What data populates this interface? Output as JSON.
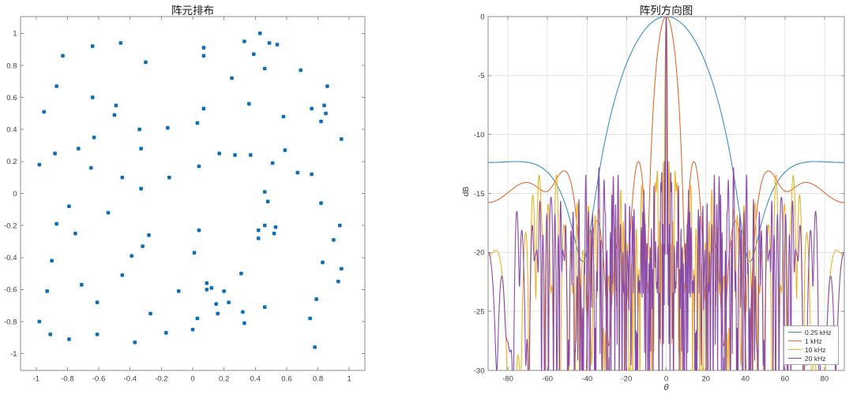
{
  "page": {
    "background": "#ffffff"
  },
  "chart_data": [
    {
      "type": "scatter",
      "title": "阵元排布",
      "xlim": [
        -1.1,
        1.1
      ],
      "ylim": [
        -1.105,
        1.105
      ],
      "xticks": [
        -1,
        -0.8,
        -0.6,
        -0.4,
        -0.2,
        0,
        0.2,
        0.4,
        0.6,
        0.8,
        1
      ],
      "yticks": [
        -1,
        -0.8,
        -0.6,
        -0.4,
        -0.2,
        0,
        0.2,
        0.4,
        0.6,
        0.8,
        1
      ],
      "grid": false,
      "marker_color": "#0E6FB8",
      "marker_size_px": 4.6,
      "points": [
        [
          -0.98,
          0.18
        ],
        [
          -0.95,
          0.51
        ],
        [
          -0.88,
          0.25
        ],
        [
          -0.83,
          0.86
        ],
        [
          -0.87,
          0.67
        ],
        [
          -0.73,
          0.28
        ],
        [
          -0.64,
          0.92
        ],
        [
          -0.64,
          0.6
        ],
        [
          -0.63,
          0.35
        ],
        [
          -0.65,
          0.16
        ],
        [
          -0.46,
          0.94
        ],
        [
          -0.49,
          0.55
        ],
        [
          -0.5,
          0.49
        ],
        [
          -0.45,
          0.1
        ],
        [
          -0.3,
          0.82
        ],
        [
          -0.34,
          0.4
        ],
        [
          -0.33,
          0.28
        ],
        [
          -0.33,
          0.03
        ],
        [
          -0.16,
          0.41
        ],
        [
          -0.15,
          0.1
        ],
        [
          0.07,
          0.91
        ],
        [
          0.07,
          0.86
        ],
        [
          0.03,
          0.44
        ],
        [
          0.07,
          0.53
        ],
        [
          0.04,
          0.17
        ],
        [
          0.25,
          0.72
        ],
        [
          0.17,
          0.25
        ],
        [
          0.27,
          0.24
        ],
        [
          0.33,
          0.95
        ],
        [
          0.39,
          0.87
        ],
        [
          0.43,
          1.0
        ],
        [
          0.46,
          0.78
        ],
        [
          0.36,
          0.56
        ],
        [
          0.37,
          0.24
        ],
        [
          0.49,
          0.94
        ],
        [
          0.54,
          0.93
        ],
        [
          0.46,
          0.01
        ],
        [
          0.51,
          0.19
        ],
        [
          0.58,
          0.48
        ],
        [
          0.59,
          0.27
        ],
        [
          0.69,
          0.77
        ],
        [
          0.67,
          0.13
        ],
        [
          0.76,
          0.53
        ],
        [
          0.76,
          0.12
        ],
        [
          0.84,
          0.55
        ],
        [
          0.85,
          0.5
        ],
        [
          0.82,
          0.45
        ],
        [
          0.86,
          0.67
        ],
        [
          0.95,
          0.34
        ],
        [
          -0.79,
          -0.08
        ],
        [
          -0.54,
          -0.12
        ],
        [
          -0.87,
          -0.19
        ],
        [
          -0.75,
          -0.25
        ],
        [
          -0.9,
          -0.42
        ],
        [
          -0.93,
          -0.61
        ],
        [
          -0.98,
          -0.8
        ],
        [
          -0.91,
          -0.88
        ],
        [
          -0.79,
          -0.91
        ],
        [
          -0.71,
          -0.57
        ],
        [
          -0.61,
          -0.68
        ],
        [
          -0.61,
          -0.88
        ],
        [
          -0.45,
          -0.51
        ],
        [
          -0.39,
          -0.39
        ],
        [
          -0.32,
          -0.33
        ],
        [
          -0.28,
          -0.26
        ],
        [
          -0.37,
          -0.93
        ],
        [
          -0.27,
          -0.75
        ],
        [
          -0.17,
          -0.87
        ],
        [
          -0.09,
          -0.61
        ],
        [
          0.04,
          -0.23
        ],
        [
          0.01,
          -0.37
        ],
        [
          0.03,
          -0.78
        ],
        [
          0.0,
          -0.85
        ],
        [
          0.09,
          -0.56
        ],
        [
          0.09,
          -0.6
        ],
        [
          0.12,
          -0.59
        ],
        [
          0.15,
          -0.69
        ],
        [
          0.16,
          -0.75
        ],
        [
          0.2,
          -0.61
        ],
        [
          0.23,
          -0.68
        ],
        [
          0.31,
          -0.5
        ],
        [
          0.32,
          -0.74
        ],
        [
          0.33,
          -0.81
        ],
        [
          0.46,
          -0.71
        ],
        [
          0.42,
          -0.23
        ],
        [
          0.42,
          -0.28
        ],
        [
          0.46,
          -0.2
        ],
        [
          0.52,
          -0.25
        ],
        [
          0.53,
          -0.21
        ],
        [
          0.48,
          -0.05
        ],
        [
          0.82,
          -0.06
        ],
        [
          0.94,
          -0.2
        ],
        [
          0.9,
          -0.29
        ],
        [
          0.83,
          -0.43
        ],
        [
          0.95,
          -0.47
        ],
        [
          0.93,
          -0.55
        ],
        [
          0.79,
          -0.66
        ],
        [
          0.75,
          -0.78
        ],
        [
          0.78,
          -0.96
        ]
      ]
    },
    {
      "type": "line",
      "title": "阵列方向图",
      "xlabel": "θ",
      "ylabel": "dB",
      "xlim": [
        -90,
        90
      ],
      "ylim": [
        -30,
        0
      ],
      "xticks": [
        -80,
        -60,
        -40,
        -20,
        0,
        20,
        40,
        60,
        80
      ],
      "yticks": [
        0,
        -5,
        -10,
        -15,
        -20,
        -25,
        -30
      ],
      "grid": true,
      "grid_color": "#e4e4e4",
      "legend_position": "southeast",
      "derived_from_elements": true,
      "series": [
        {
          "label": "0.25 kHz",
          "frequency_hz": 250,
          "color": "#3A8FC9",
          "peak_db": 0,
          "peak_deg": 0,
          "first_null_deg": 42,
          "null_depth_db": -20.4,
          "edge_level_db": -12.4
        },
        {
          "label": "1 kHz",
          "frequency_hz": 1000,
          "color": "#E06B33",
          "peak_db": 0,
          "peak_deg": 0,
          "first_null_deg": 10,
          "first_sidelobe_deg": 13.5,
          "first_sidelobe_db": -12.3,
          "edge_level_db": -17
        },
        {
          "label": "10 kHz",
          "frequency_hz": 10000,
          "color": "#EDB328",
          "peak_db": 0,
          "peak_deg": 0,
          "sidelobe_band_db": [
            -30,
            -13
          ]
        },
        {
          "label": "20 kHz",
          "frequency_hz": 20000,
          "color": "#8A4BA8",
          "peak_db": 0,
          "peak_deg": 0,
          "sidelobe_band_db": [
            -30,
            -12.8
          ]
        }
      ]
    }
  ]
}
